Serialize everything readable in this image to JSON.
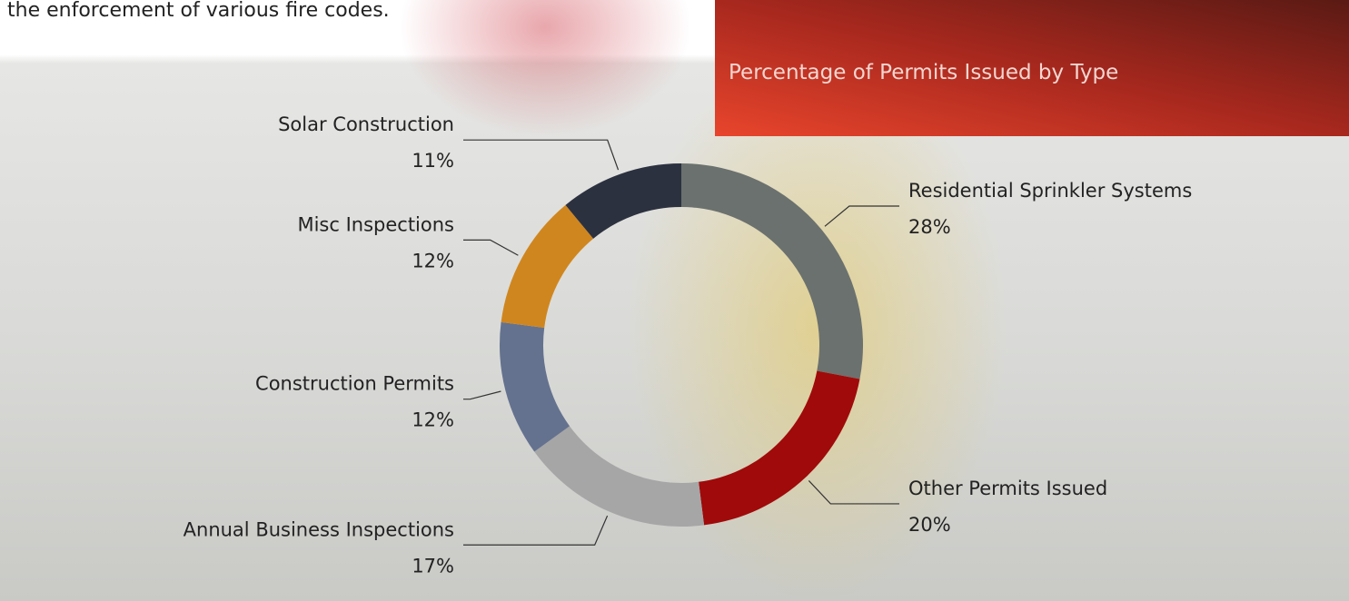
{
  "intro_text": "the enforcement of various fire codes.",
  "chart_data": {
    "type": "donut",
    "title": "Percentage of Permits Issued by Type",
    "categories": [
      "Residential Sprinkler Systems",
      "Other Permits Issued",
      "Annual Business Inspections",
      "Construction Permits",
      "Misc Inspections",
      "Solar Construction"
    ],
    "values": [
      28,
      20,
      17,
      12,
      12,
      11
    ],
    "value_labels": [
      "28%",
      "20%",
      "17%",
      "12%",
      "12%",
      "11%"
    ],
    "colors": [
      "#6b716e",
      "#a00a0a",
      "#a6a6a6",
      "#64728f",
      "#d0861e",
      "#2c3140"
    ]
  }
}
